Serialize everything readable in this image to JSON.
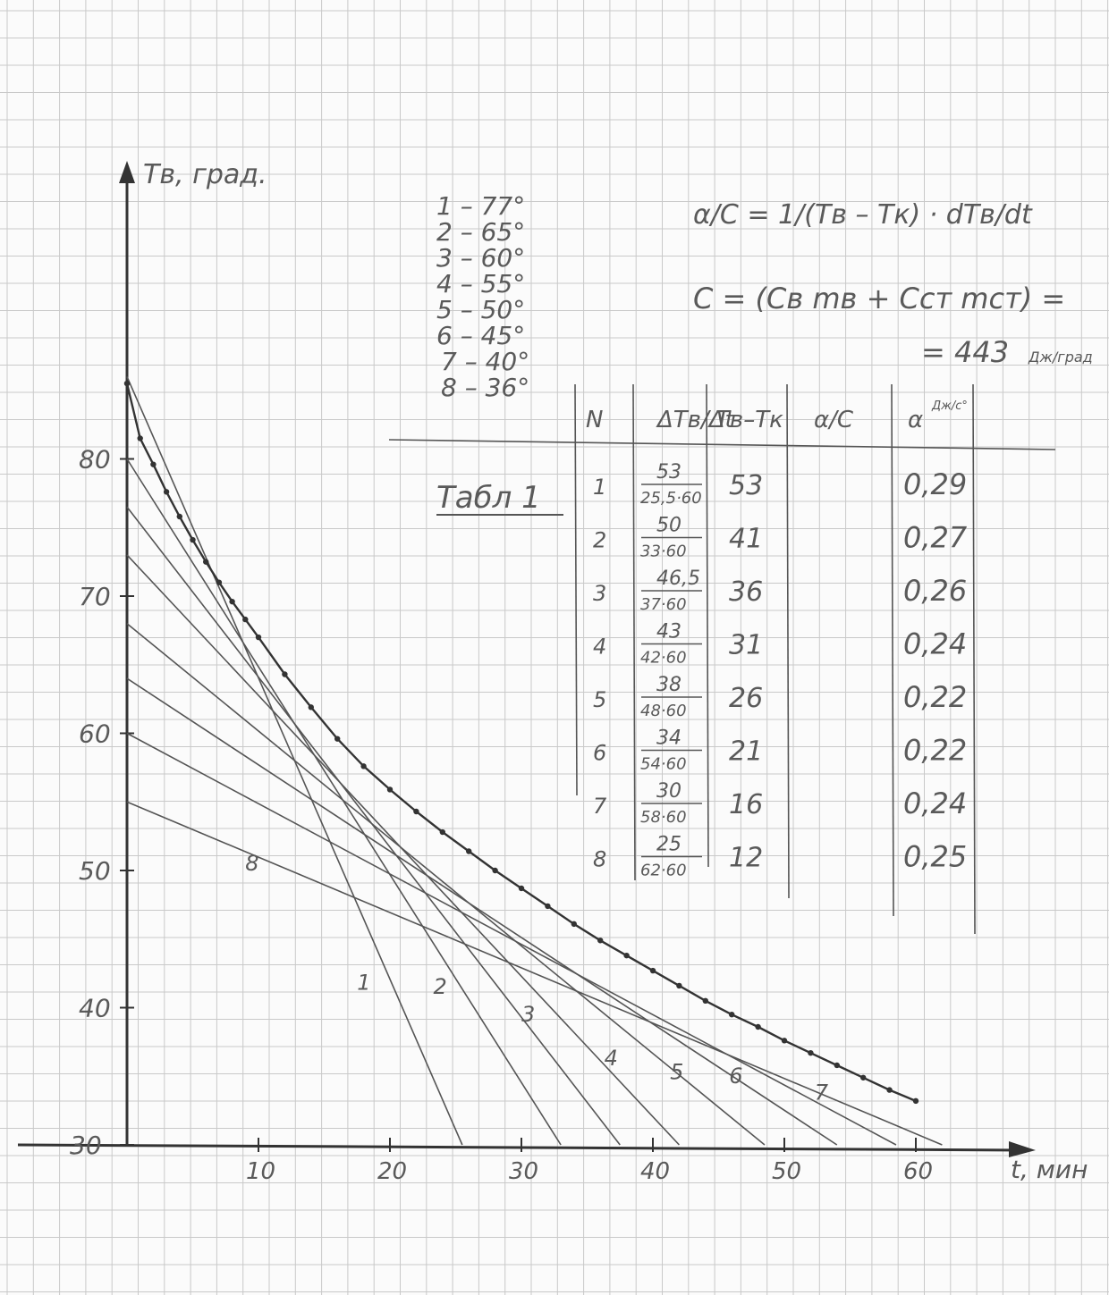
{
  "chart_data": {
    "type": "line",
    "ylabel": "Tв, град.",
    "xlabel": "t, мин",
    "xlim": [
      0,
      62
    ],
    "ylim": [
      30,
      85
    ],
    "x_ticks": [
      "10",
      "20",
      "30",
      "40",
      "50",
      "60"
    ],
    "y_ticks": [
      "30",
      "40",
      "50",
      "60",
      "70",
      "80"
    ],
    "grid": true,
    "series": [
      {
        "x": [
          0,
          1,
          2,
          3,
          4,
          5,
          6,
          7,
          8,
          9,
          10,
          12,
          14,
          16,
          18,
          20,
          22,
          24,
          26,
          28,
          30,
          32,
          34,
          36,
          38,
          40,
          42,
          44,
          46,
          48,
          50,
          52,
          54,
          56,
          58,
          60
        ],
        "y": [
          85.5,
          81.5,
          79.6,
          77.6,
          75.8,
          74.1,
          72.5,
          71,
          69.6,
          68.3,
          67,
          64.3,
          61.9,
          59.6,
          57.6,
          55.9,
          54.3,
          52.8,
          51.4,
          50,
          48.7,
          47.4,
          46.1,
          44.9,
          43.8,
          42.7,
          41.6,
          40.5,
          39.5,
          38.6,
          37.6,
          36.7,
          35.8,
          34.9,
          34,
          33.2
        ]
      }
    ],
    "tangent_labels": [
      "1",
      "2",
      "3",
      "4",
      "5",
      "6",
      "7",
      "8"
    ],
    "tangent_lines": [
      {
        "id": "1",
        "p1": [
          0,
          86
        ],
        "p2": [
          25.5,
          30
        ]
      },
      {
        "id": "2",
        "p1": [
          0,
          80
        ],
        "p2": [
          33,
          30
        ]
      },
      {
        "id": "3",
        "p1": [
          0,
          76.5
        ],
        "p2": [
          37.5,
          30
        ]
      },
      {
        "id": "4",
        "p1": [
          0,
          73
        ],
        "p2": [
          42,
          30
        ]
      },
      {
        "id": "5",
        "p1": [
          0,
          68
        ],
        "p2": [
          48.5,
          30
        ]
      },
      {
        "id": "6",
        "p1": [
          0,
          64
        ],
        "p2": [
          54,
          30
        ]
      },
      {
        "id": "7",
        "p1": [
          0,
          60
        ],
        "p2": [
          58.5,
          30
        ]
      },
      {
        "id": "8",
        "p1": [
          0,
          55
        ],
        "p2": [
          62,
          30
        ]
      }
    ]
  },
  "notes": {
    "temperature_list": [
      "1 – 77°",
      "2 – 65°",
      "3 – 60°",
      "4 – 55°",
      "5 – 50°",
      "6 – 45°",
      "7 – 40°",
      "8 – 36°"
    ],
    "formula_1": "α/C = 1/(Tв – Tк) · dTв/dt",
    "formula_2": "C = (Cв mв + Cст mст) =",
    "formula_2_result": "= 443",
    "formula_2_unit": "Дж/град"
  },
  "table": {
    "caption": "Табл 1",
    "headers": [
      "N",
      "ΔTв/Δt",
      "Tв–Tк",
      "α/C",
      "α"
    ],
    "unit_alpha": "Дж/с°",
    "rows": [
      {
        "n": "1",
        "num": "53",
        "den": "25,5·60",
        "diff": "53",
        "alpha": "0,29"
      },
      {
        "n": "2",
        "num": "50",
        "den": "33·60",
        "diff": "41",
        "alpha": "0,27"
      },
      {
        "n": "3",
        "num": "46,5",
        "den": "37·60",
        "diff": "36",
        "alpha": "0,26"
      },
      {
        "n": "4",
        "num": "43",
        "den": "42·60",
        "diff": "31",
        "alpha": "0,24"
      },
      {
        "n": "5",
        "num": "38",
        "den": "48·60",
        "diff": "26",
        "alpha": "0,22"
      },
      {
        "n": "6",
        "num": "34",
        "den": "54·60",
        "diff": "21",
        "alpha": "0,22"
      },
      {
        "n": "7",
        "num": "30",
        "den": "58·60",
        "diff": "16",
        "alpha": "0,24"
      },
      {
        "n": "8",
        "num": "25",
        "den": "62·60",
        "diff": "12",
        "alpha": "0,25"
      }
    ]
  }
}
